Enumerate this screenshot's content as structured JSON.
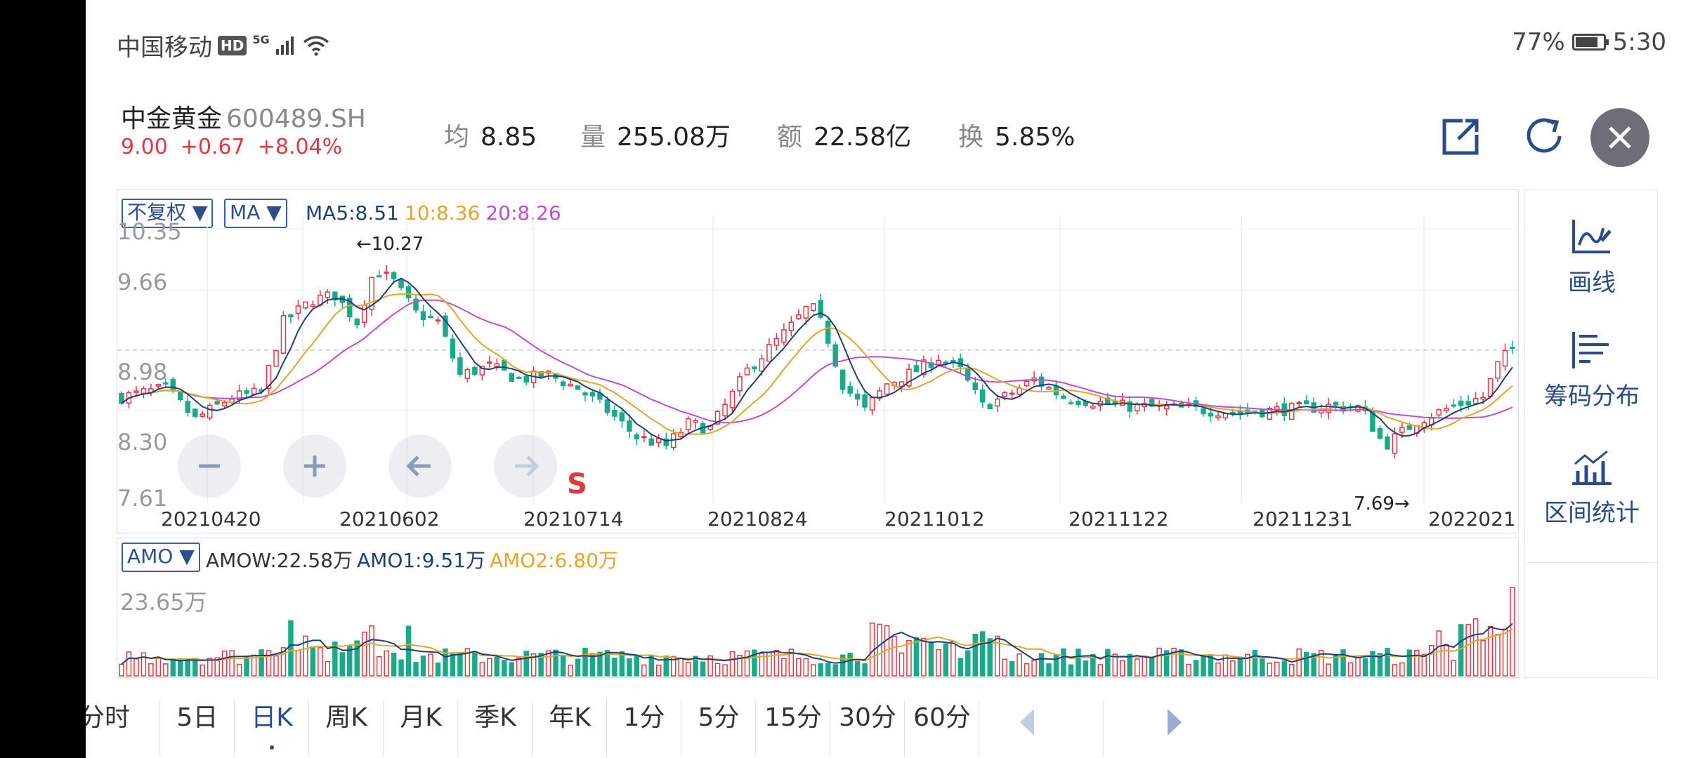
{
  "status_bar": {
    "carrier": "中国移动",
    "hd": "HD",
    "net": "5G",
    "battery": "77%",
    "time": "5:30"
  },
  "stock": {
    "name": "中金黄金",
    "code": "600489.SH",
    "price": "9.00",
    "change": "+0.67",
    "change_pct": "+8.04%"
  },
  "metrics": [
    {
      "label": "均",
      "value": "8.85"
    },
    {
      "label": "量",
      "value": "255.08万"
    },
    {
      "label": "额",
      "value": "22.58亿"
    },
    {
      "label": "换",
      "value": "5.85%"
    }
  ],
  "kline": {
    "adj_select": "不复权 ▼",
    "ind_select": "MA ▼",
    "ma5": "MA5:8.51",
    "ma10": "10:8.36",
    "ma20": "20:8.26",
    "y_labels": [
      "10.35",
      "9.66",
      "8.98",
      "8.30",
      "7.61"
    ],
    "x_labels": [
      "20210420",
      "20210602",
      "20210714",
      "20210824",
      "20211012",
      "20211122",
      "20211231",
      "2022021"
    ],
    "high_note": "←10.27",
    "low_note": "7.69→",
    "sell_mark": "S",
    "nav": {
      "zoom_out": "−",
      "zoom_in": "+",
      "left": "←",
      "right": "→"
    }
  },
  "volume": {
    "select": "AMO ▼",
    "amow": "AMOW:22.58万",
    "amo1": "AMO1:9.51万",
    "amo2": "AMO2:6.80万",
    "max_label": "23.65万"
  },
  "tools": [
    {
      "label": "画线",
      "icon": "draw-line-icon"
    },
    {
      "label": "筹码分布",
      "icon": "chip-distribution-icon"
    },
    {
      "label": "区间统计",
      "icon": "range-stats-icon"
    }
  ],
  "tabs": [
    "分时",
    "5日",
    "日K",
    "周K",
    "月K",
    "季K",
    "年K",
    "1分",
    "5分",
    "15分",
    "30分",
    "60分"
  ],
  "active_tab": "日K",
  "colors": {
    "up": "#e0383e",
    "down": "#1aaa8a",
    "ma5": "#1f3f7a",
    "ma10": "#e4a52a",
    "ma20": "#c04dd0",
    "accent": "#2b4c8c"
  },
  "chart_data": {
    "type": "candlestick",
    "ylim": [
      7.61,
      10.35
    ],
    "last_close": 9.0,
    "high": 10.27,
    "low": 7.69,
    "ma": {
      "MA5": 8.51,
      "MA10": 8.36,
      "MA20": 8.26
    },
    "volume_max": "23.65万"
  }
}
